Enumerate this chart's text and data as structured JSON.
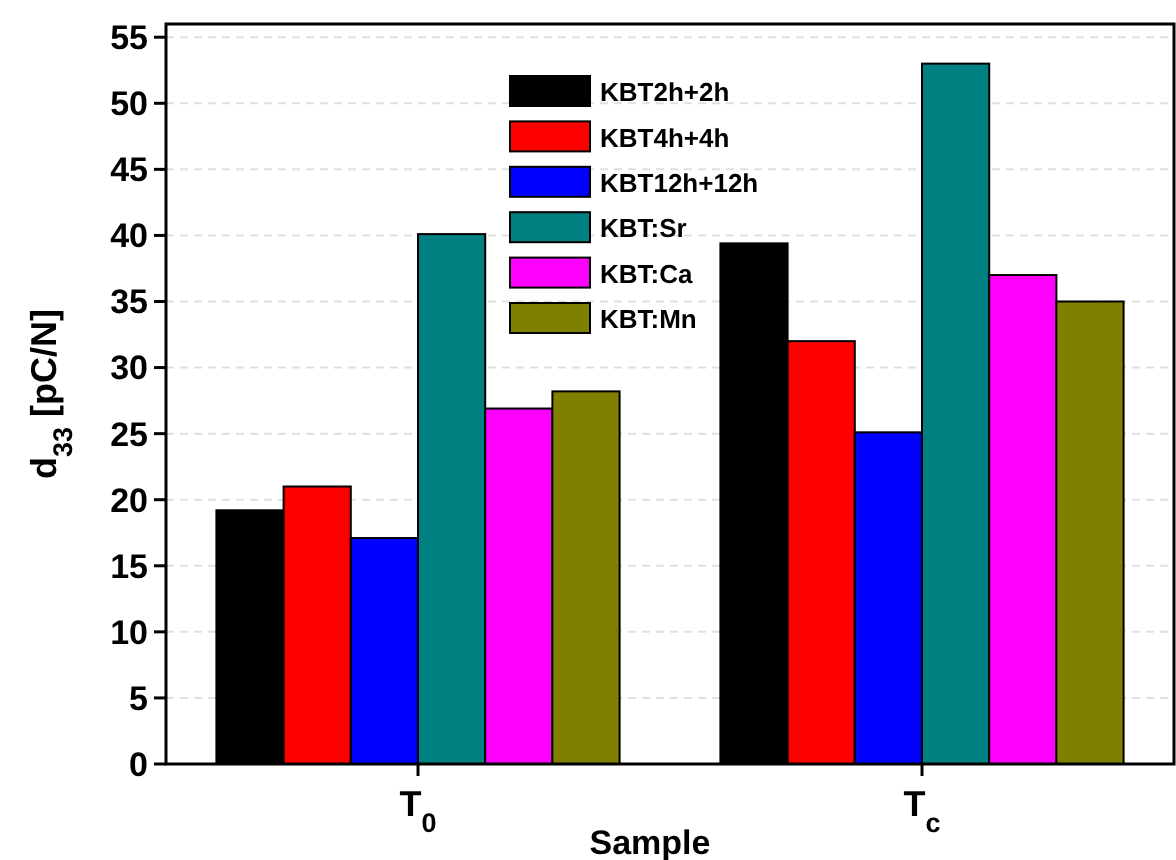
{
  "chart_data": {
    "type": "bar",
    "xlabel": "Sample",
    "ylabel": "d$_{33}$ [pC/N]",
    "categories": [
      "T$_{0}$",
      "T$_{c}$"
    ],
    "series": [
      {
        "name": "KBT2h+2h",
        "color": "#000000",
        "values": [
          19.2,
          39.4
        ]
      },
      {
        "name": "KBT4h+4h",
        "color": "#ff0000",
        "values": [
          21,
          32
        ]
      },
      {
        "name": "KBT12h+12h",
        "color": "#0000ff",
        "values": [
          17.1,
          25.1
        ]
      },
      {
        "name": "KBT:Sr",
        "color": "#008080",
        "values": [
          40.1,
          53
        ]
      },
      {
        "name": "KBT:Ca",
        "color": "#ff00ff",
        "values": [
          26.9,
          37
        ]
      },
      {
        "name": "KBT:Mn",
        "color": "#808000",
        "values": [
          28.2,
          35
        ]
      }
    ],
    "ylim": [
      0,
      56
    ],
    "yticks": [
      0,
      5,
      10,
      15,
      20,
      25,
      30,
      35,
      40,
      45,
      50,
      55
    ],
    "grid": "y",
    "legend": "top"
  }
}
